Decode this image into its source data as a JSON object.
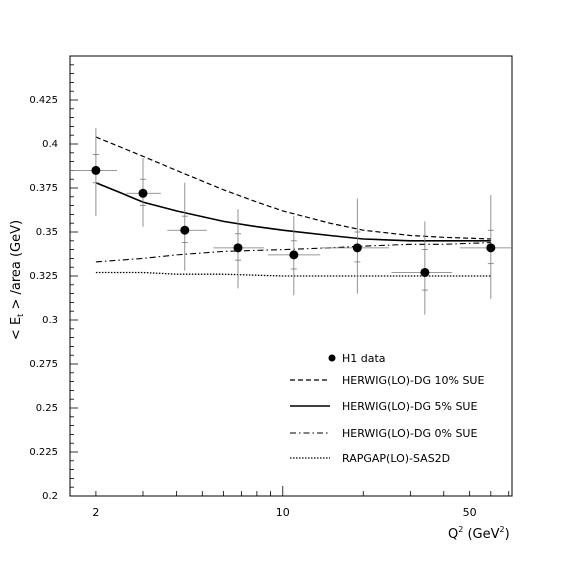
{
  "chart_data": {
    "type": "scatter",
    "title": "",
    "xlabel_parts": {
      "base": "Q",
      "sup": "2",
      "rest_pre": " (GeV",
      "rest_sup": "2",
      "rest_post": ")"
    },
    "ylabel_parts": {
      "pre": "< E",
      "sub": "t",
      "post": " > /area (GeV)"
    },
    "x_scale": "log",
    "xlim": [
      1.6,
      72
    ],
    "ylim": [
      0.2,
      0.45
    ],
    "x_ticks": [
      {
        "value": 2,
        "label": "2"
      },
      {
        "value": 10,
        "label": "10"
      },
      {
        "value": 50,
        "label": "50"
      }
    ],
    "y_ticks": [
      {
        "value": 0.2,
        "label": "0.2"
      },
      {
        "value": 0.225,
        "label": "0.225"
      },
      {
        "value": 0.25,
        "label": "0.25"
      },
      {
        "value": 0.275,
        "label": "0.275"
      },
      {
        "value": 0.3,
        "label": "0.3"
      },
      {
        "value": 0.325,
        "label": "0.325"
      },
      {
        "value": 0.35,
        "label": "0.35"
      },
      {
        "value": 0.375,
        "label": "0.375"
      },
      {
        "value": 0.4,
        "label": "0.4"
      },
      {
        "value": 0.425,
        "label": "0.425"
      }
    ],
    "data_points": {
      "name": "H1 data",
      "points": [
        {
          "x": 2.0,
          "y": 0.385,
          "xerr": [
            1.6,
            2.4
          ],
          "stat": [
            0.378,
            0.394
          ],
          "sys": [
            0.359,
            0.409
          ]
        },
        {
          "x": 3.0,
          "y": 0.372,
          "xerr": [
            2.6,
            3.5
          ],
          "stat": [
            0.365,
            0.38
          ],
          "sys": [
            0.353,
            0.392
          ]
        },
        {
          "x": 4.3,
          "y": 0.351,
          "xerr": [
            3.7,
            5.2
          ],
          "stat": [
            0.344,
            0.359
          ],
          "sys": [
            0.328,
            0.378
          ]
        },
        {
          "x": 6.8,
          "y": 0.341,
          "xerr": [
            5.5,
            8.5
          ],
          "stat": [
            0.334,
            0.349
          ],
          "sys": [
            0.318,
            0.363
          ]
        },
        {
          "x": 11.0,
          "y": 0.337,
          "xerr": [
            8.8,
            13.8
          ],
          "stat": [
            0.329,
            0.345
          ],
          "sys": [
            0.314,
            0.359
          ]
        },
        {
          "x": 19.0,
          "y": 0.341,
          "xerr": [
            14.0,
            25.0
          ],
          "stat": [
            0.333,
            0.35
          ],
          "sys": [
            0.315,
            0.369
          ]
        },
        {
          "x": 34.0,
          "y": 0.327,
          "xerr": [
            25.5,
            43.0
          ],
          "stat": [
            0.317,
            0.34
          ],
          "sys": [
            0.303,
            0.356
          ]
        },
        {
          "x": 60.0,
          "y": 0.341,
          "xerr": [
            46.0,
            72.0
          ],
          "stat": [
            0.332,
            0.351
          ],
          "sys": [
            0.312,
            0.371
          ]
        }
      ]
    },
    "series": [
      {
        "name": "HERWIG(LO)-DG 10% SUE",
        "style": "dashed",
        "x": [
          2,
          3,
          4,
          6,
          8,
          10,
          15,
          20,
          30,
          40,
          60
        ],
        "y": [
          0.404,
          0.393,
          0.385,
          0.374,
          0.367,
          0.362,
          0.355,
          0.351,
          0.348,
          0.347,
          0.346
        ]
      },
      {
        "name": "HERWIG(LO)-DG 5% SUE",
        "style": "solid",
        "x": [
          2,
          2.5,
          3,
          4,
          6,
          8,
          10,
          15,
          20,
          30,
          40,
          60
        ],
        "y": [
          0.378,
          0.372,
          0.367,
          0.362,
          0.356,
          0.353,
          0.351,
          0.348,
          0.346,
          0.345,
          0.345,
          0.345
        ]
      },
      {
        "name": "HERWIG(LO)-DG 0% SUE",
        "style": "dashdot",
        "x": [
          2,
          3,
          4,
          6,
          10,
          15,
          20,
          30,
          40,
          60
        ],
        "y": [
          0.333,
          0.335,
          0.337,
          0.339,
          0.34,
          0.341,
          0.342,
          0.343,
          0.343,
          0.344
        ]
      },
      {
        "name": "RAPGAP(LO)-SAS2D",
        "style": "dotted",
        "x": [
          2,
          3,
          4,
          6,
          10,
          15,
          20,
          30,
          40,
          60
        ],
        "y": [
          0.327,
          0.327,
          0.326,
          0.326,
          0.325,
          0.325,
          0.325,
          0.325,
          0.325,
          0.325
        ]
      }
    ],
    "legend_position": "lower-right",
    "grid": false
  }
}
